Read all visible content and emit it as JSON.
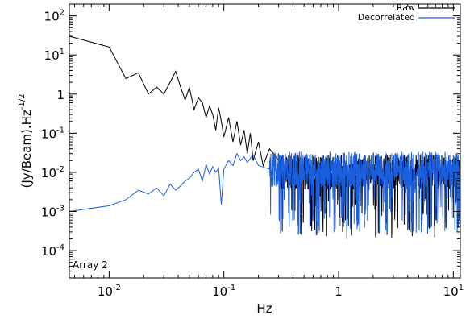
{
  "chart_data": {
    "type": "line",
    "xlabel": "Hz",
    "ylabel": "(Jy/Beam).Hz",
    "ylabel_exponent": "-1/2",
    "x_scale": "log",
    "y_scale": "log",
    "xlim": [
      0.0045,
      11.5
    ],
    "ylim": [
      2e-05,
      200
    ],
    "x_ticks": [
      {
        "value": 0.01,
        "base": "10",
        "exp": "-2"
      },
      {
        "value": 0.1,
        "base": "10",
        "exp": "-1"
      },
      {
        "value": 1,
        "base": "1",
        "exp": ""
      },
      {
        "value": 10,
        "base": "10",
        "exp": "1"
      }
    ],
    "y_ticks": [
      {
        "value": 0.0001,
        "base": "10",
        "exp": "-4"
      },
      {
        "value": 0.001,
        "base": "10",
        "exp": "-3"
      },
      {
        "value": 0.01,
        "base": "10",
        "exp": "-2"
      },
      {
        "value": 0.1,
        "base": "10",
        "exp": "-1"
      },
      {
        "value": 1,
        "base": "1",
        "exp": ""
      },
      {
        "value": 10,
        "base": "10",
        "exp": "1"
      },
      {
        "value": 100,
        "base": "10",
        "exp": "2"
      }
    ],
    "annotation": "Array 2",
    "legend_position": "top-right",
    "series": [
      {
        "name": "Raw",
        "color": "#000000",
        "points": [
          [
            0.0045,
            30
          ],
          [
            0.01,
            16
          ],
          [
            0.014,
            2.5
          ],
          [
            0.018,
            3.5
          ],
          [
            0.022,
            1.0
          ],
          [
            0.026,
            1.5
          ],
          [
            0.03,
            1.0
          ],
          [
            0.034,
            2.0
          ],
          [
            0.038,
            3.8
          ],
          [
            0.042,
            1.5
          ],
          [
            0.046,
            0.7
          ],
          [
            0.05,
            1.5
          ],
          [
            0.055,
            0.4
          ],
          [
            0.06,
            0.8
          ],
          [
            0.065,
            0.6
          ],
          [
            0.07,
            0.25
          ],
          [
            0.075,
            0.5
          ],
          [
            0.08,
            0.3
          ],
          [
            0.085,
            0.12
          ],
          [
            0.09,
            0.45
          ],
          [
            0.095,
            0.2
          ],
          [
            0.1,
            0.08
          ],
          [
            0.11,
            0.25
          ],
          [
            0.12,
            0.06
          ],
          [
            0.13,
            0.2
          ],
          [
            0.14,
            0.05
          ],
          [
            0.15,
            0.12
          ],
          [
            0.16,
            0.03
          ],
          [
            0.17,
            0.1
          ],
          [
            0.18,
            0.02
          ],
          [
            0.2,
            0.06
          ],
          [
            0.22,
            0.015
          ],
          [
            0.25,
            0.04
          ],
          [
            0.3,
            0.02
          ]
        ],
        "noise_from": 0.3,
        "noise_to": 11.5,
        "noise_level": 0.01
      },
      {
        "name": "Decorrelated",
        "color": "#1a5fe0",
        "points": [
          [
            0.0045,
            0.001
          ],
          [
            0.01,
            0.0014
          ],
          [
            0.014,
            0.002
          ],
          [
            0.018,
            0.0035
          ],
          [
            0.022,
            0.0028
          ],
          [
            0.026,
            0.004
          ],
          [
            0.03,
            0.0025
          ],
          [
            0.034,
            0.005
          ],
          [
            0.038,
            0.0035
          ],
          [
            0.042,
            0.0045
          ],
          [
            0.046,
            0.006
          ],
          [
            0.05,
            0.007
          ],
          [
            0.055,
            0.01
          ],
          [
            0.06,
            0.012
          ],
          [
            0.065,
            0.006
          ],
          [
            0.07,
            0.016
          ],
          [
            0.075,
            0.009
          ],
          [
            0.08,
            0.014
          ],
          [
            0.085,
            0.01
          ],
          [
            0.09,
            0.013
          ],
          [
            0.095,
            0.0015
          ],
          [
            0.1,
            0.012
          ],
          [
            0.11,
            0.02
          ],
          [
            0.12,
            0.015
          ],
          [
            0.13,
            0.03
          ],
          [
            0.14,
            0.02
          ],
          [
            0.15,
            0.025
          ],
          [
            0.16,
            0.018
          ],
          [
            0.18,
            0.028
          ],
          [
            0.2,
            0.015
          ],
          [
            0.25,
            0.012
          ]
        ],
        "noise_from": 0.25,
        "noise_to": 11.5,
        "noise_level": 0.012
      }
    ]
  }
}
